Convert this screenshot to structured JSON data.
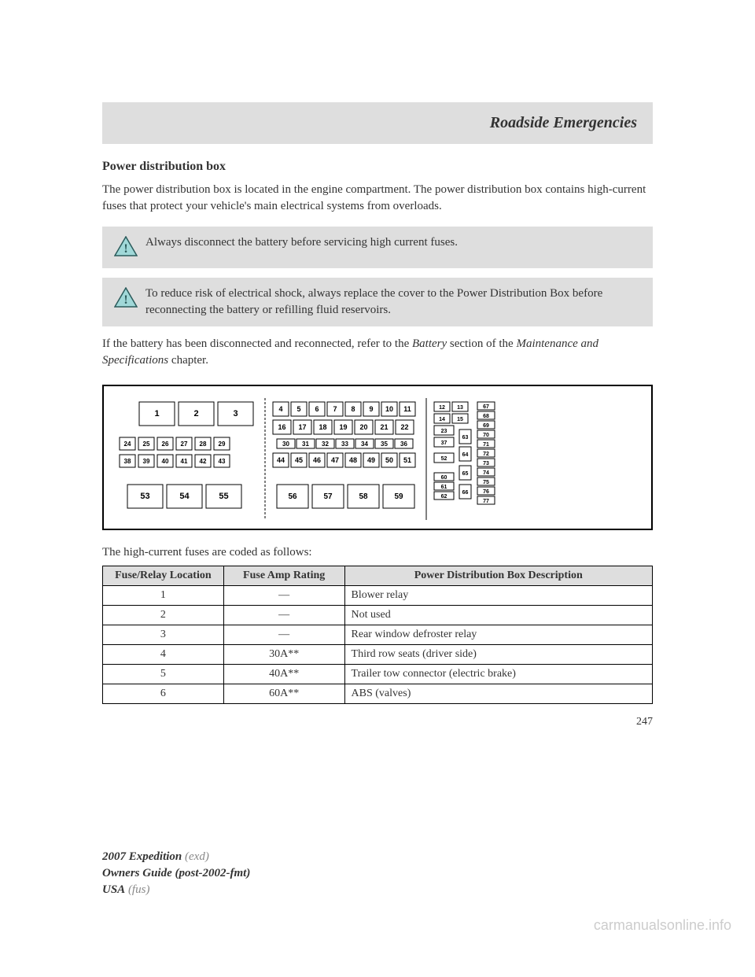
{
  "header": {
    "title": "Roadside Emergencies"
  },
  "section": {
    "title": "Power distribution box",
    "intro": "The power distribution box is located in the engine compartment. The power distribution box contains high-current fuses that protect your vehicle's main electrical systems from overloads."
  },
  "warnings": [
    {
      "text": "Always disconnect the battery before servicing high current fuses."
    },
    {
      "text": "To reduce risk of electrical shock, always replace the cover to the Power Distribution Box before reconnecting the battery or refilling fluid reservoirs."
    }
  ],
  "battery_note_pre": "If the battery has been disconnected and reconnected, refer to the ",
  "battery_note_italic1": "Battery",
  "battery_note_mid": " section of the ",
  "battery_note_italic2": "Maintenance and Specifications",
  "battery_note_post": " chapter.",
  "table_intro": "The high-current fuses are coded as follows:",
  "table": {
    "headers": [
      "Fuse/Relay Location",
      "Fuse Amp Rating",
      "Power Distribution Box Description"
    ],
    "rows": [
      [
        "1",
        "—",
        "Blower relay"
      ],
      [
        "2",
        "—",
        "Not used"
      ],
      [
        "3",
        "—",
        "Rear window defroster relay"
      ],
      [
        "4",
        "30A**",
        "Third row seats (driver side)"
      ],
      [
        "5",
        "40A**",
        "Trailer tow connector (electric brake)"
      ],
      [
        "6",
        "60A**",
        "ABS (valves)"
      ]
    ]
  },
  "page_number": "247",
  "footer": {
    "line1_bold": "2007 Expedition",
    "line1_grey": " (exd)",
    "line2_bold": "Owners Guide (post-2002-fmt)",
    "line3_bold": "USA",
    "line3_grey": " (fus)"
  },
  "watermark": "carmanualsonline.info",
  "diagram": {
    "numbers": {
      "row_big_top": [
        "1",
        "2",
        "3"
      ],
      "row_mid1": [
        "24",
        "25",
        "26",
        "27",
        "28",
        "29"
      ],
      "row_mid2": [
        "38",
        "39",
        "40",
        "41",
        "42",
        "43"
      ],
      "row_big_bot": [
        "53",
        "54",
        "55"
      ],
      "r_row1": [
        "4",
        "5",
        "6",
        "7",
        "8",
        "9",
        "10",
        "11"
      ],
      "r_row2": [
        "16",
        "17",
        "18",
        "19",
        "20",
        "21",
        "22"
      ],
      "r_row3": [
        "30",
        "31",
        "32",
        "33",
        "34",
        "35",
        "36"
      ],
      "r_row4": [
        "44",
        "45",
        "46",
        "47",
        "48",
        "49",
        "50",
        "51"
      ],
      "r_row5": [
        "56",
        "57",
        "58",
        "59"
      ],
      "far_col1": [
        "12",
        "13",
        "67",
        "14",
        "15",
        "68",
        "23",
        "69",
        "37",
        "70",
        "52",
        "71",
        "72",
        "60",
        "73",
        "61",
        "74",
        "62",
        "75",
        "76",
        "77",
        "63",
        "64",
        "65",
        "66"
      ]
    }
  },
  "colors": {
    "box_bg": "#dedede",
    "icon_bg": "#a0d8d8",
    "icon_border": "#2a5a5a",
    "text": "#333333"
  }
}
